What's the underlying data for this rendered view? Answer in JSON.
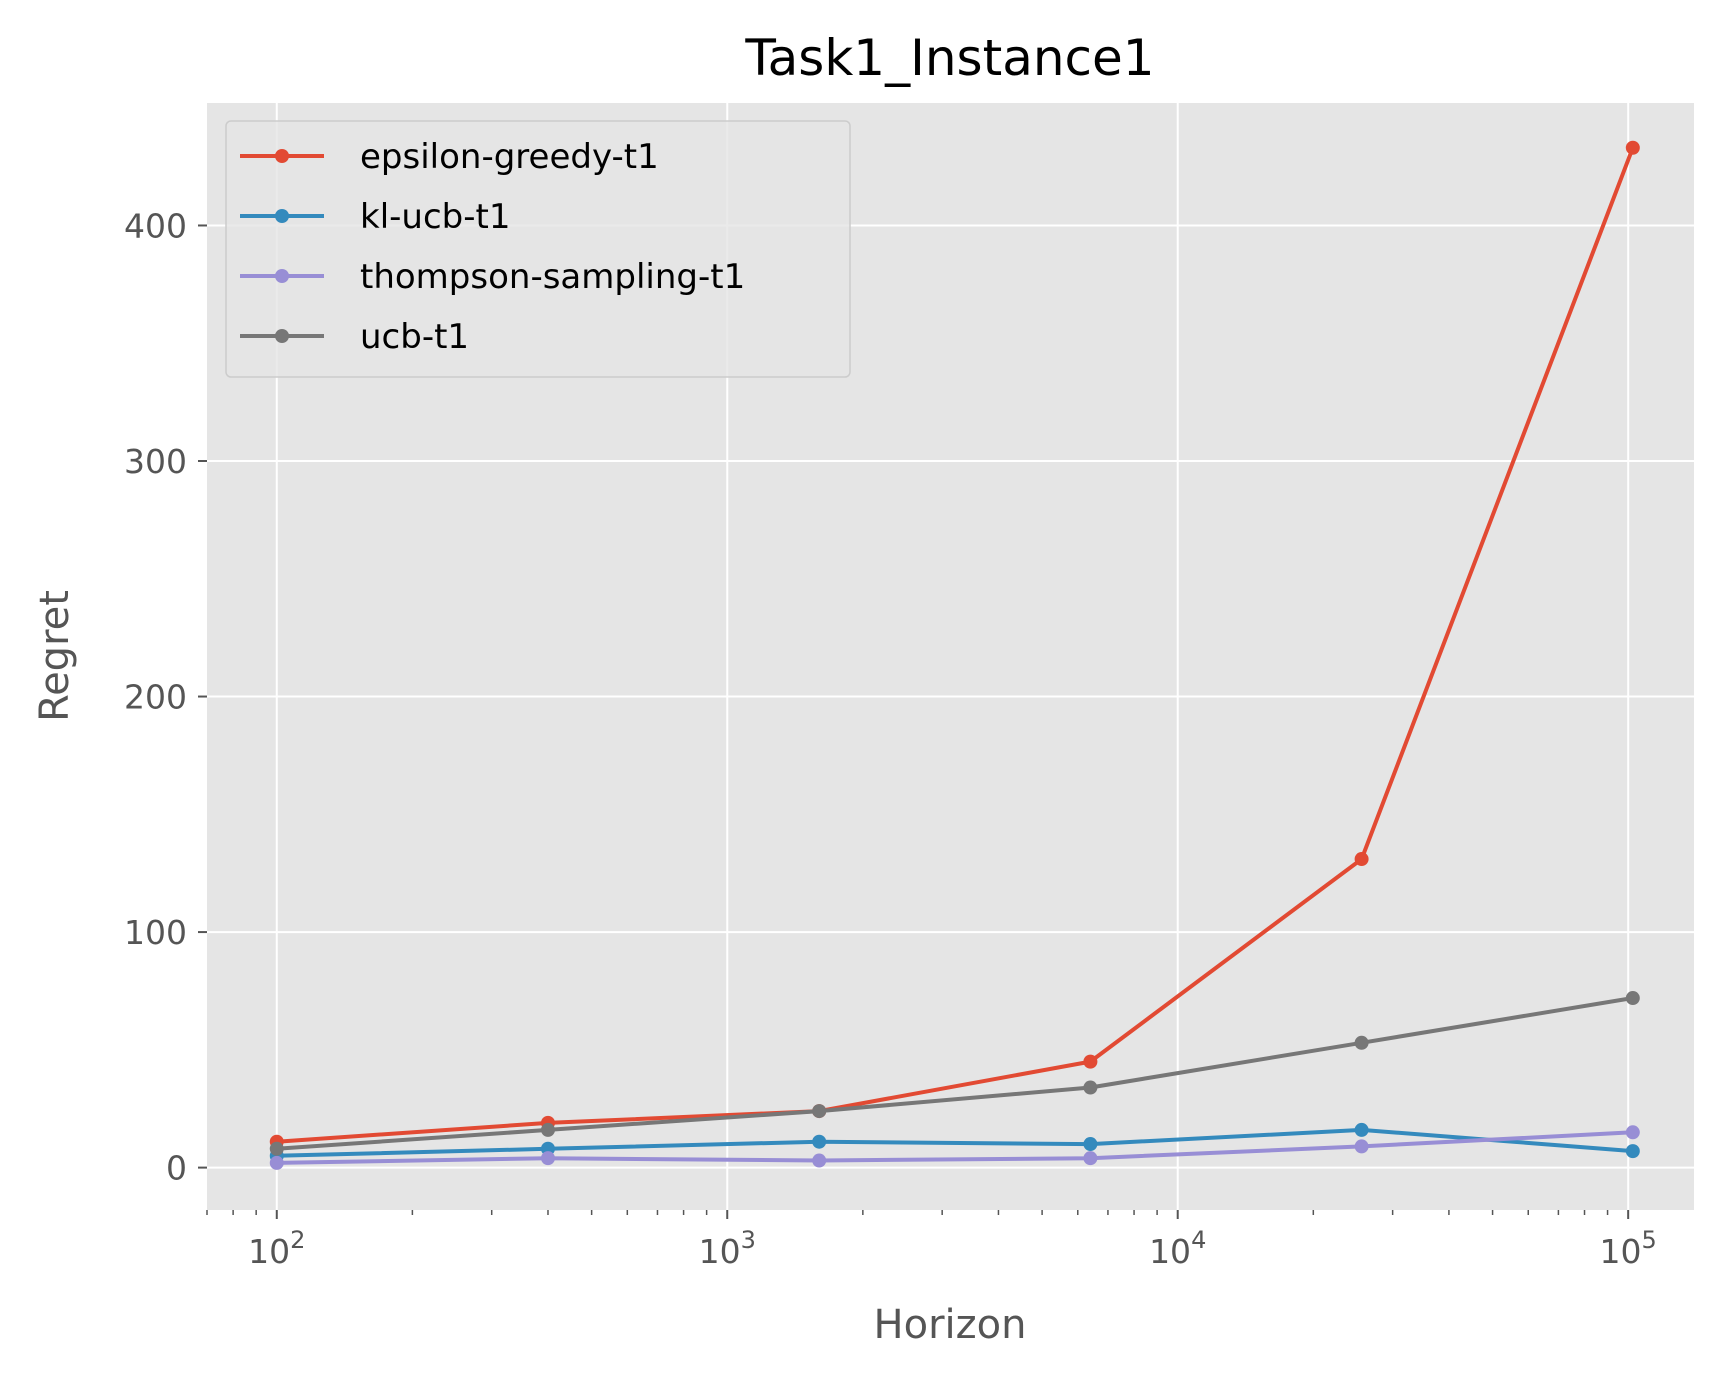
{
  "chart_data": {
    "type": "line",
    "title": "Task1_Instance1",
    "xlabel": "Horizon",
    "ylabel": "Regret",
    "xscale": "log",
    "xlim": [
      70,
      140000
    ],
    "ylim": [
      -18,
      452
    ],
    "grid": true,
    "legend_position": "top-left",
    "x": [
      100,
      400,
      1600,
      6400,
      25600,
      102400
    ],
    "xticks": [
      {
        "value": 100,
        "base": "10",
        "exp": "2"
      },
      {
        "value": 1000,
        "base": "10",
        "exp": "3"
      },
      {
        "value": 10000,
        "base": "10",
        "exp": "4"
      },
      {
        "value": 100000,
        "base": "10",
        "exp": "5"
      }
    ],
    "yticks": [
      {
        "value": 0,
        "label": "0"
      },
      {
        "value": 100,
        "label": "100"
      },
      {
        "value": 200,
        "label": "200"
      },
      {
        "value": 300,
        "label": "300"
      },
      {
        "value": 400,
        "label": "400"
      }
    ],
    "series": [
      {
        "name": "epsilon-greedy-t1",
        "color": "#E24A33",
        "values": [
          11,
          19,
          24,
          45,
          131,
          433
        ]
      },
      {
        "name": "kl-ucb-t1",
        "color": "#348ABD",
        "values": [
          5,
          8,
          11,
          10,
          16,
          7
        ]
      },
      {
        "name": "thompson-sampling-t1",
        "color": "#988ED5",
        "values": [
          2,
          4,
          3,
          4,
          9,
          15
        ]
      },
      {
        "name": "ucb-t1",
        "color": "#777777",
        "values": [
          8,
          16,
          24,
          34,
          53,
          72
        ]
      }
    ]
  }
}
